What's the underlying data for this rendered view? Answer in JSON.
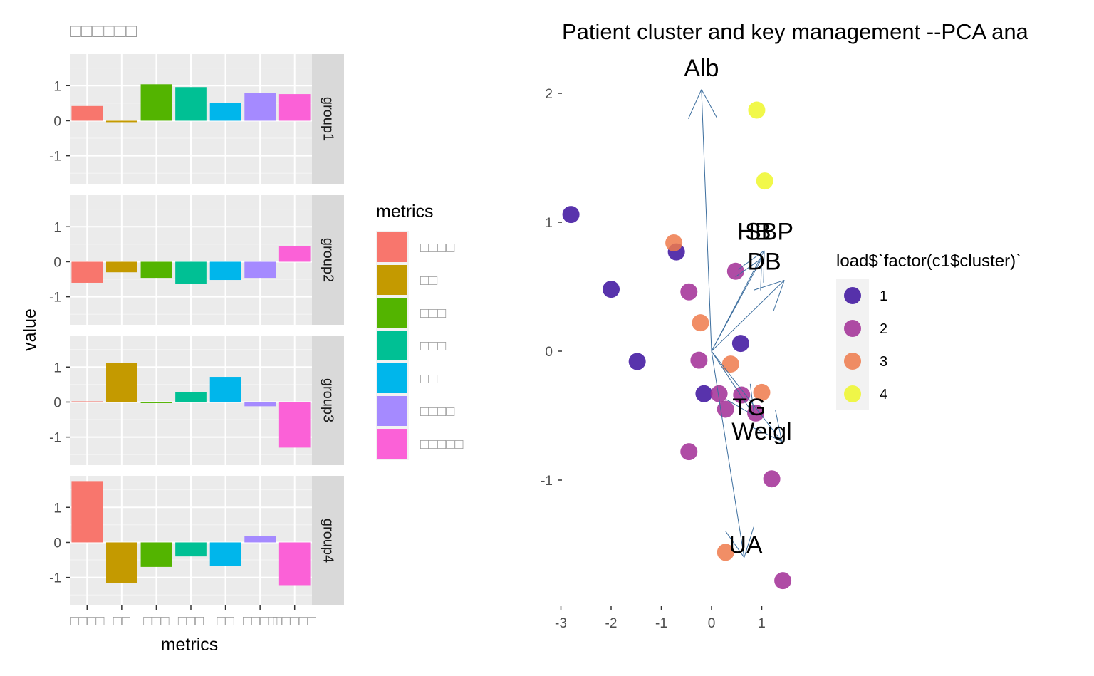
{
  "chart_data": [
    {
      "type": "bar",
      "title": "□□□□□□",
      "xlabel": "metrics",
      "ylabel": "value",
      "ylim": [
        -1.8,
        1.9
      ],
      "yticks": [
        -1,
        0,
        1
      ],
      "grid": true,
      "legend": {
        "title": "metrics",
        "position": "right"
      },
      "categories": [
        "□□□□",
        "□□",
        "□□□",
        "□□□",
        "□□",
        "□□□□",
        "□□□□□"
      ],
      "colors": [
        "#F8766D",
        "#C49A00",
        "#53B400",
        "#00C094",
        "#00B6EB",
        "#A58AFF",
        "#FB61D7"
      ],
      "panels": [
        {
          "name": "group1",
          "values": [
            0.42,
            -0.04,
            1.04,
            0.96,
            0.5,
            0.8,
            0.76
          ]
        },
        {
          "name": "group2",
          "values": [
            -0.6,
            -0.3,
            -0.46,
            -0.63,
            -0.52,
            -0.46,
            0.44
          ]
        },
        {
          "name": "group3",
          "values": [
            0.02,
            1.12,
            -0.02,
            0.28,
            0.72,
            -0.12,
            -1.3
          ]
        },
        {
          "name": "group4",
          "values": [
            1.75,
            -1.15,
            -0.7,
            -0.4,
            -0.68,
            0.18,
            -1.22
          ]
        }
      ]
    },
    {
      "type": "scatter",
      "title": "Patient cluster and key management --PCA ana",
      "xlabel": "",
      "ylabel": "",
      "xlim": [
        -3.2,
        1.85
      ],
      "ylim": [
        -2.05,
        2.2
      ],
      "xticks": [
        -3,
        -2,
        -1,
        0,
        1
      ],
      "yticks": [
        -1,
        0,
        1,
        2
      ],
      "grid": false,
      "legend": {
        "title": "load$`factor(c1$cluster)`",
        "position": "right",
        "entries": [
          {
            "label": "1",
            "color": "#3B0F9D"
          },
          {
            "label": "2",
            "color": "#A12D95"
          },
          {
            "label": "3",
            "color": "#EF7A4B"
          },
          {
            "label": "4",
            "color": "#EEF72A"
          }
        ]
      },
      "points": [
        {
          "x": -2.8,
          "y": 1.06,
          "cluster": "1"
        },
        {
          "x": -2.0,
          "y": 0.48,
          "cluster": "1"
        },
        {
          "x": -1.48,
          "y": -0.08,
          "cluster": "1"
        },
        {
          "x": -0.7,
          "y": 0.77,
          "cluster": "1"
        },
        {
          "x": -0.15,
          "y": -0.33,
          "cluster": "1"
        },
        {
          "x": 0.58,
          "y": 0.06,
          "cluster": "1"
        },
        {
          "x": 0.48,
          "y": 0.62,
          "cluster": "2"
        },
        {
          "x": -0.45,
          "y": 0.46,
          "cluster": "2"
        },
        {
          "x": -0.25,
          "y": -0.07,
          "cluster": "2"
        },
        {
          "x": 0.15,
          "y": -0.33,
          "cluster": "2"
        },
        {
          "x": 0.6,
          "y": -0.34,
          "cluster": "2"
        },
        {
          "x": 0.28,
          "y": -0.45,
          "cluster": "2"
        },
        {
          "x": 0.88,
          "y": -0.48,
          "cluster": "2"
        },
        {
          "x": -0.45,
          "y": -0.78,
          "cluster": "2"
        },
        {
          "x": 1.2,
          "y": -0.99,
          "cluster": "2"
        },
        {
          "x": 1.42,
          "y": -1.78,
          "cluster": "2"
        },
        {
          "x": -0.75,
          "y": 0.84,
          "cluster": "3"
        },
        {
          "x": -0.22,
          "y": 0.22,
          "cluster": "3"
        },
        {
          "x": 0.38,
          "y": -0.1,
          "cluster": "3"
        },
        {
          "x": 1.0,
          "y": -0.32,
          "cluster": "3"
        },
        {
          "x": 0.28,
          "y": -1.56,
          "cluster": "3"
        },
        {
          "x": 0.9,
          "y": 1.87,
          "cluster": "4"
        },
        {
          "x": 1.06,
          "y": 1.32,
          "cluster": "4"
        }
      ],
      "vectors": [
        {
          "label": "Alb",
          "x": -0.2,
          "y": 2.03
        },
        {
          "label": "SBP",
          "x": 1.0,
          "y": 0.72
        },
        {
          "label": "HB",
          "x": 1.05,
          "y": 0.78
        },
        {
          "label": "DB",
          "x": 1.45,
          "y": 0.55
        },
        {
          "label": "TG",
          "x": 0.85,
          "y": -0.5
        },
        {
          "label": "Weight",
          "x": 1.4,
          "y": -0.7
        },
        {
          "label": "UA",
          "x": 0.65,
          "y": -1.6
        }
      ],
      "vector_labels": [
        {
          "text": "Alb",
          "x": -0.2,
          "y": 2.2
        },
        {
          "text": "HB",
          "x": 0.85,
          "y": 0.93
        },
        {
          "text": "SBP",
          "x": 1.15,
          "y": 0.93
        },
        {
          "text": "DB",
          "x": 1.05,
          "y": 0.7
        },
        {
          "text": "TG",
          "x": 0.75,
          "y": -0.43
        },
        {
          "text": "Weigl",
          "x": 1.0,
          "y": -0.62
        },
        {
          "text": "UA",
          "x": 0.68,
          "y": -1.5
        }
      ]
    }
  ]
}
